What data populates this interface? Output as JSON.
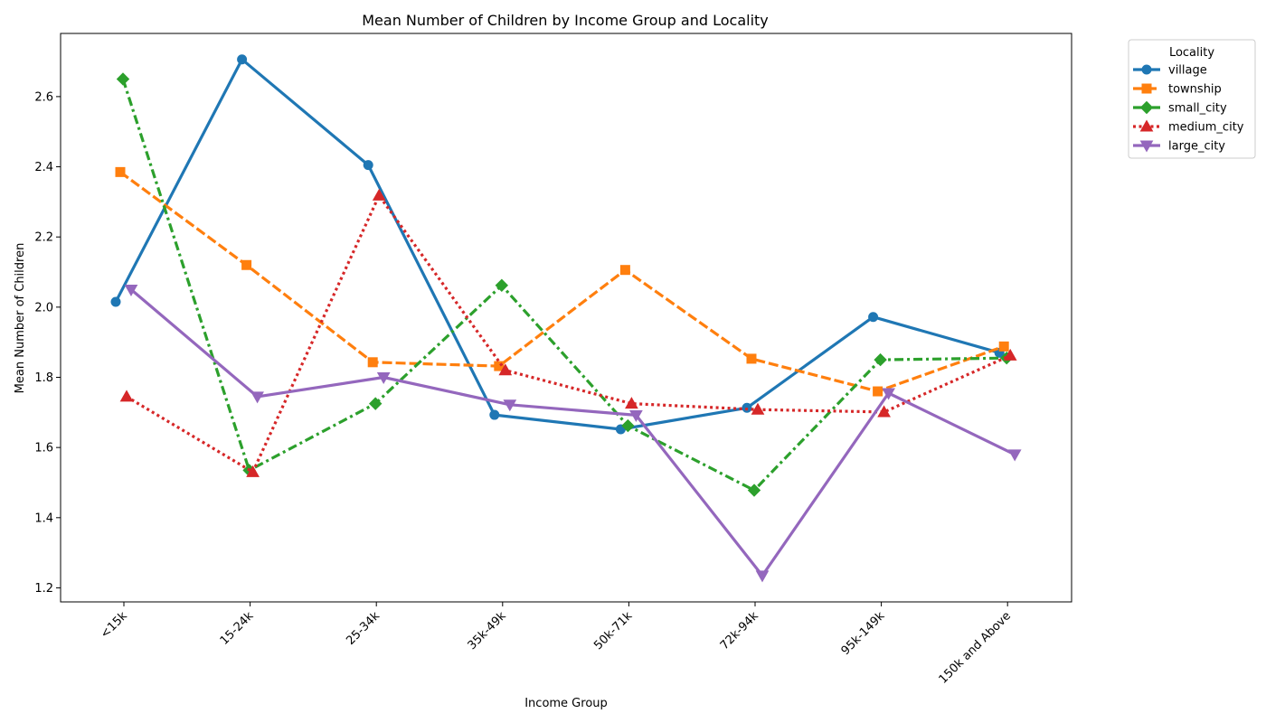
{
  "chart_data": {
    "type": "line",
    "title": "Mean Number of Children by Income Group and Locality",
    "xlabel": "Income Group",
    "ylabel": "Mean Number of Children",
    "categories": [
      "<15k",
      "15-24k",
      "25-34k",
      "35k-49k",
      "50k-71k",
      "72k-94k",
      "95k-149k",
      "150k and Above"
    ],
    "ylim": [
      1.16,
      2.78
    ],
    "yticks": [
      "1.2",
      "1.4",
      "1.6",
      "1.8",
      "2.0",
      "2.2",
      "2.4",
      "2.6"
    ],
    "grid": false,
    "legend": {
      "title": "Locality",
      "placement": "outside top-right"
    },
    "series": [
      {
        "name": "village",
        "color": "#1f77b4",
        "marker": "circle",
        "dash": "solid",
        "values": [
          2.015,
          2.706,
          2.405,
          1.693,
          1.652,
          1.713,
          1.972,
          1.87
        ]
      },
      {
        "name": "township",
        "color": "#ff7f0e",
        "marker": "square",
        "dash": "dashed",
        "values": [
          2.385,
          2.12,
          1.843,
          1.832,
          2.106,
          1.853,
          1.76,
          1.888
        ]
      },
      {
        "name": "small_city",
        "color": "#2ca02c",
        "marker": "diamond",
        "dash": "dashdot",
        "values": [
          2.65,
          1.535,
          1.725,
          2.062,
          1.662,
          1.478,
          1.85,
          1.855
        ]
      },
      {
        "name": "medium_city",
        "color": "#d62728",
        "marker": "triangle-up",
        "dash": "dotted",
        "values": [
          1.745,
          1.53,
          2.318,
          1.82,
          1.725,
          1.708,
          1.701,
          1.862
        ]
      },
      {
        "name": "large_city",
        "color": "#9467bd",
        "marker": "triangle-down",
        "dash": "solid",
        "values": [
          2.05,
          1.745,
          1.8,
          1.722,
          1.692,
          1.235,
          1.755,
          1.58
        ]
      }
    ]
  }
}
